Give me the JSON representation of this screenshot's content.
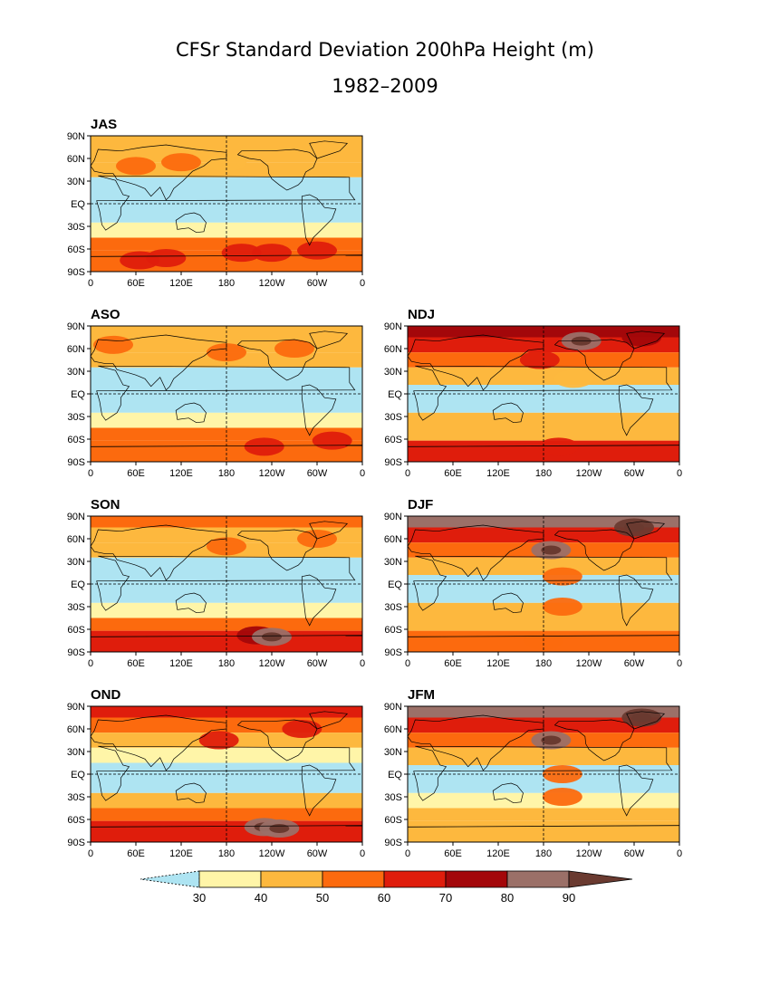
{
  "chart_data": {
    "type": "heatmap",
    "title": "CFSr Standard Deviation 200hPa Height (m)",
    "subtitle": "1982–2009",
    "x_tick_labels": [
      "0",
      "60E",
      "120E",
      "180",
      "120W",
      "60W",
      "0"
    ],
    "y_tick_labels": [
      "90N",
      "60N",
      "30N",
      "EQ",
      "30S",
      "60S",
      "90S"
    ],
    "xlim": [
      0,
      360
    ],
    "ylim": [
      -90,
      90
    ],
    "colorbar": {
      "levels": [
        30,
        40,
        50,
        60,
        70,
        80,
        90
      ],
      "level_labels": [
        "30",
        "40",
        "50",
        "60",
        "70",
        "80",
        "90"
      ],
      "colors": [
        "#aee4f2",
        "#fff5a8",
        "#fdb83e",
        "#fc6a0e",
        "#df1d0c",
        "#a3070a",
        "#9b7068",
        "#6a3a30"
      ],
      "extend": "both"
    },
    "panels": [
      {
        "label": "JAS",
        "lat_bands": [
          {
            "lat": [
              90,
              75
            ],
            "value": 45
          },
          {
            "lat": [
              75,
              55
            ],
            "value": 42
          },
          {
            "lat": [
              55,
              35
            ],
            "value": 40
          },
          {
            "lat": [
              35,
              -25
            ],
            "value": 28
          },
          {
            "lat": [
              -25,
              -45
            ],
            "value": 36
          },
          {
            "lat": [
              -45,
              -62
            ],
            "value": 52
          },
          {
            "lat": [
              -62,
              -90
            ],
            "value": 55
          }
        ],
        "blobs": [
          {
            "lon": 60,
            "lat": 50,
            "value": 52
          },
          {
            "lon": 120,
            "lat": 55,
            "value": 52
          },
          {
            "lon": 180,
            "lat": 55,
            "value": 45
          },
          {
            "lon": 65,
            "lat": -75,
            "value": 62
          },
          {
            "lon": 100,
            "lat": -72,
            "value": 62
          },
          {
            "lon": 200,
            "lat": -65,
            "value": 62
          },
          {
            "lon": 240,
            "lat": -65,
            "value": 65
          },
          {
            "lon": 300,
            "lat": -62,
            "value": 65
          }
        ]
      },
      {
        "label": "ASO",
        "lat_bands": [
          {
            "lat": [
              90,
              75
            ],
            "value": 48
          },
          {
            "lat": [
              75,
              55
            ],
            "value": 45
          },
          {
            "lat": [
              55,
              35
            ],
            "value": 42
          },
          {
            "lat": [
              35,
              -25
            ],
            "value": 28
          },
          {
            "lat": [
              -25,
              -45
            ],
            "value": 38
          },
          {
            "lat": [
              -45,
              -62
            ],
            "value": 52
          },
          {
            "lat": [
              -62,
              -90
            ],
            "value": 58
          }
        ],
        "blobs": [
          {
            "lon": 30,
            "lat": 65,
            "value": 52
          },
          {
            "lon": 180,
            "lat": 55,
            "value": 52
          },
          {
            "lon": 270,
            "lat": 60,
            "value": 52
          },
          {
            "lon": 230,
            "lat": -70,
            "value": 66
          },
          {
            "lon": 320,
            "lat": -62,
            "value": 62
          }
        ]
      },
      {
        "label": "NDJ",
        "lat_bands": [
          {
            "lat": [
              90,
              75
            ],
            "value": 72
          },
          {
            "lat": [
              75,
              55
            ],
            "value": 60
          },
          {
            "lat": [
              55,
              35
            ],
            "value": 52
          },
          {
            "lat": [
              35,
              12
            ],
            "value": 40
          },
          {
            "lat": [
              12,
              -25
            ],
            "value": 28
          },
          {
            "lat": [
              -25,
              -45
            ],
            "value": 40
          },
          {
            "lat": [
              -45,
              -62
            ],
            "value": 48
          },
          {
            "lat": [
              -62,
              -90
            ],
            "value": 60
          }
        ],
        "blobs": [
          {
            "lon": 230,
            "lat": 70,
            "value": 82
          },
          {
            "lon": 310,
            "lat": 75,
            "value": 76
          },
          {
            "lon": 175,
            "lat": 45,
            "value": 65
          },
          {
            "lon": 220,
            "lat": 20,
            "value": 42
          },
          {
            "lon": 200,
            "lat": -70,
            "value": 66
          }
        ]
      },
      {
        "label": "SON",
        "lat_bands": [
          {
            "lat": [
              90,
              75
            ],
            "value": 52
          },
          {
            "lat": [
              75,
              55
            ],
            "value": 46
          },
          {
            "lat": [
              55,
              35
            ],
            "value": 42
          },
          {
            "lat": [
              35,
              -25
            ],
            "value": 28
          },
          {
            "lat": [
              -25,
              -45
            ],
            "value": 38
          },
          {
            "lat": [
              -45,
              -62
            ],
            "value": 52
          },
          {
            "lat": [
              -62,
              -90
            ],
            "value": 60
          }
        ],
        "blobs": [
          {
            "lon": 180,
            "lat": 50,
            "value": 55
          },
          {
            "lon": 300,
            "lat": 60,
            "value": 54
          },
          {
            "lon": 220,
            "lat": -68,
            "value": 75
          },
          {
            "lon": 240,
            "lat": -70,
            "value": 82
          }
        ]
      },
      {
        "label": "DJF",
        "lat_bands": [
          {
            "lat": [
              90,
              75
            ],
            "value": 80
          },
          {
            "lat": [
              75,
              55
            ],
            "value": 62
          },
          {
            "lat": [
              55,
              35
            ],
            "value": 52
          },
          {
            "lat": [
              35,
              12
            ],
            "value": 42
          },
          {
            "lat": [
              12,
              -25
            ],
            "value": 28
          },
          {
            "lat": [
              -25,
              -45
            ],
            "value": 40
          },
          {
            "lat": [
              -45,
              -62
            ],
            "value": 45
          },
          {
            "lat": [
              -62,
              -90
            ],
            "value": 52
          }
        ],
        "blobs": [
          {
            "lon": 190,
            "lat": 45,
            "value": 88
          },
          {
            "lon": 300,
            "lat": 75,
            "value": 92
          },
          {
            "lon": 205,
            "lat": 10,
            "value": 50
          },
          {
            "lon": 205,
            "lat": -30,
            "value": 52
          },
          {
            "lon": 180,
            "lat": -75,
            "value": 58
          }
        ]
      },
      {
        "label": "OND",
        "lat_bands": [
          {
            "lat": [
              90,
              75
            ],
            "value": 68
          },
          {
            "lat": [
              75,
              55
            ],
            "value": 58
          },
          {
            "lat": [
              55,
              35
            ],
            "value": 46
          },
          {
            "lat": [
              35,
              15
            ],
            "value": 36
          },
          {
            "lat": [
              15,
              -25
            ],
            "value": 28
          },
          {
            "lat": [
              -25,
              -45
            ],
            "value": 40
          },
          {
            "lat": [
              -45,
              -62
            ],
            "value": 52
          },
          {
            "lat": [
              -62,
              -90
            ],
            "value": 66
          }
        ],
        "blobs": [
          {
            "lon": 170,
            "lat": 45,
            "value": 62
          },
          {
            "lon": 280,
            "lat": 60,
            "value": 66
          },
          {
            "lon": 230,
            "lat": -70,
            "value": 82
          },
          {
            "lon": 250,
            "lat": -72,
            "value": 84
          }
        ]
      },
      {
        "label": "JFM",
        "lat_bands": [
          {
            "lat": [
              90,
              75
            ],
            "value": 82
          },
          {
            "lat": [
              75,
              55
            ],
            "value": 62
          },
          {
            "lat": [
              55,
              35
            ],
            "value": 50
          },
          {
            "lat": [
              35,
              12
            ],
            "value": 40
          },
          {
            "lat": [
              12,
              -25
            ],
            "value": 28
          },
          {
            "lat": [
              -25,
              -45
            ],
            "value": 38
          },
          {
            "lat": [
              -45,
              -62
            ],
            "value": 42
          },
          {
            "lat": [
              -62,
              -90
            ],
            "value": 46
          }
        ],
        "blobs": [
          {
            "lon": 190,
            "lat": 45,
            "value": 88
          },
          {
            "lon": 310,
            "lat": 75,
            "value": 92
          },
          {
            "lon": 205,
            "lat": 0,
            "value": 50
          },
          {
            "lon": 205,
            "lat": -30,
            "value": 52
          }
        ]
      }
    ]
  }
}
